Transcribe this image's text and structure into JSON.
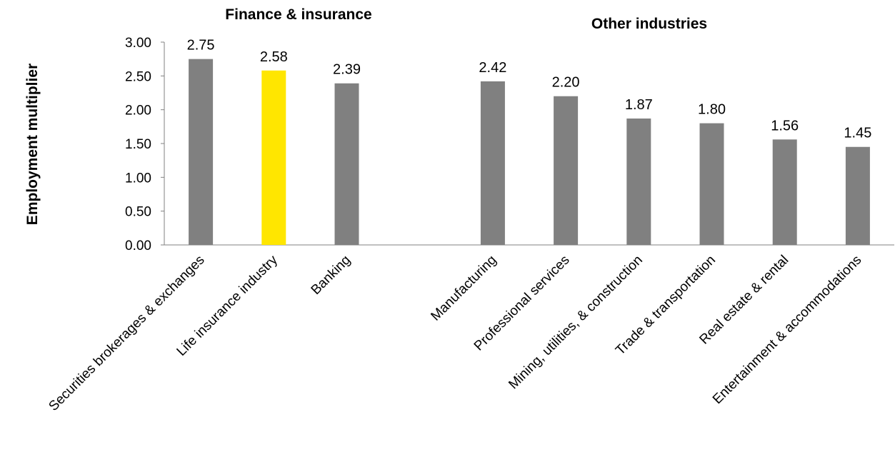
{
  "chart_data": {
    "type": "bar",
    "ylabel": "Employment multiplier",
    "ylim": [
      0,
      3
    ],
    "yticks": [
      "0.00",
      "0.50",
      "1.00",
      "1.50",
      "2.00",
      "2.50",
      "3.00"
    ],
    "grid": false,
    "groups": [
      {
        "title": "Finance & insurance"
      },
      {
        "title": "Other industries"
      }
    ],
    "bars": [
      {
        "category": "Securities brokerages & exchanges",
        "value": 2.75,
        "label": "2.75",
        "color": "#808080",
        "group": 0
      },
      {
        "category": "Life insurance industry",
        "value": 2.58,
        "label": "2.58",
        "color": "#FFE600",
        "group": 0
      },
      {
        "category": "Banking",
        "value": 2.39,
        "label": "2.39",
        "color": "#808080",
        "group": 0
      },
      {
        "category": "Manufacturing",
        "value": 2.42,
        "label": "2.42",
        "color": "#808080",
        "group": 1
      },
      {
        "category": "Professional services",
        "value": 2.2,
        "label": "2.20",
        "color": "#808080",
        "group": 1
      },
      {
        "category": "Mining, utilities, & construction",
        "value": 1.87,
        "label": "1.87",
        "color": "#808080",
        "group": 1
      },
      {
        "category": "Trade & transportation",
        "value": 1.8,
        "label": "1.80",
        "color": "#808080",
        "group": 1
      },
      {
        "category": "Real estate & rental",
        "value": 1.56,
        "label": "1.56",
        "color": "#808080",
        "group": 1
      },
      {
        "category": "Entertainment & accommodations",
        "value": 1.45,
        "label": "1.45",
        "color": "#808080",
        "group": 1
      }
    ]
  }
}
